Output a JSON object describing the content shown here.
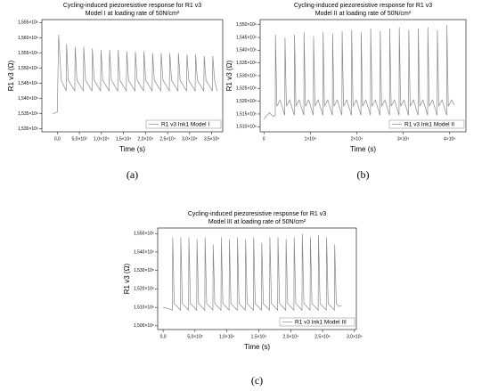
{
  "chart_data": [
    {
      "type": "line",
      "title": "Cycling-induced piezoresistive response for R1 v3",
      "subtitle": "Model I at loading rate of 50N/cm²",
      "caption": "(a)",
      "x_label": "Time (s)",
      "y_label": "R1 v3 (Ω)",
      "legend": "lower right",
      "x": [
        -1000,
        0,
        300,
        900,
        2000,
        2100,
        2500,
        3950,
        4050,
        4450,
        5900,
        6000,
        6400,
        7850,
        7950,
        8350,
        9800,
        9900,
        10300,
        11750,
        11850,
        12250,
        13700,
        13800,
        14200,
        15650,
        15750,
        16150,
        17600,
        17700,
        18100,
        19550,
        19650,
        20050,
        21500,
        21600,
        22000,
        23450,
        23550,
        23950,
        25400,
        25500,
        25900,
        27350,
        27450,
        27850,
        29300,
        29400,
        29800,
        31250,
        31350,
        31750,
        33200,
        33300,
        33700,
        35150,
        35250,
        35650,
        36200
      ],
      "series": [
        {
          "name": "R1 v3 Ink1 Model I",
          "color": "#888888",
          "values": [
            1535000,
            1535500,
            1561000,
            1546000,
            1542500,
            1558000,
            1546000,
            1542500,
            1557000,
            1546000,
            1542500,
            1557000,
            1546000,
            1542500,
            1556500,
            1546000,
            1542500,
            1556000,
            1546000,
            1542500,
            1556000,
            1546000,
            1542500,
            1556000,
            1546000,
            1542500,
            1555500,
            1546000,
            1542500,
            1555500,
            1546000,
            1542500,
            1555500,
            1546000,
            1542500,
            1555000,
            1546000,
            1542500,
            1555000,
            1546000,
            1542500,
            1555000,
            1546000,
            1542500,
            1555000,
            1546000,
            1542500,
            1554500,
            1546000,
            1542500,
            1554500,
            1546000,
            1542500,
            1554000,
            1546000,
            1542500,
            1554000,
            1546000,
            1542500
          ]
        }
      ],
      "xlim": [
        -3500,
        37500
      ],
      "ylim": [
        1529000,
        1566000
      ],
      "xticks": [
        {
          "value": 0,
          "label": "0,0"
        },
        {
          "value": 5000,
          "label": "5,0×10³"
        },
        {
          "value": 10000,
          "label": "1,0×10⁴"
        },
        {
          "value": 15000,
          "label": "1,5×10⁴"
        },
        {
          "value": 20000,
          "label": "2,0×10⁴"
        },
        {
          "value": 25000,
          "label": "2,5×10⁴"
        },
        {
          "value": 30000,
          "label": "3,0×10⁴"
        },
        {
          "value": 35000,
          "label": "3,5×10⁴"
        }
      ],
      "yticks": [
        {
          "value": 1530000,
          "label": "1,530×10⁶"
        },
        {
          "value": 1535000,
          "label": "1,535×10⁶"
        },
        {
          "value": 1540000,
          "label": "1,540×10⁶"
        },
        {
          "value": 1545000,
          "label": "1,545×10⁶"
        },
        {
          "value": 1550000,
          "label": "1,550×10⁶"
        },
        {
          "value": 1555000,
          "label": "1,555×10⁶"
        },
        {
          "value": 1560000,
          "label": "1,560×10⁶"
        },
        {
          "value": 1565000,
          "label": "1,565×10⁶"
        }
      ]
    },
    {
      "type": "line",
      "title": "Cycling-induced piezoresistive response for R1 v3",
      "subtitle": "Model II at loading rate of 50N/cm²",
      "caption": "(b)",
      "x_label": "Time (s)",
      "y_label": "R1 v3 (Ω)",
      "legend": "lower right",
      "x": [
        0,
        1200,
        2000,
        2450,
        2500,
        2800,
        3500,
        4500,
        4550,
        4850,
        5550,
        6550,
        6600,
        6900,
        7600,
        8600,
        8650,
        8950,
        9650,
        10650,
        10700,
        11000,
        11700,
        12700,
        12750,
        13050,
        13750,
        14750,
        14800,
        15100,
        15800,
        16800,
        16850,
        17150,
        17850,
        18850,
        18900,
        19200,
        19900,
        20900,
        20950,
        21250,
        21950,
        22950,
        23000,
        23300,
        24000,
        25000,
        25050,
        25350,
        26050,
        27050,
        27100,
        27400,
        28100,
        29100,
        29150,
        29450,
        30150,
        31150,
        31200,
        31500,
        32200,
        33200,
        33250,
        33550,
        34250,
        35250,
        35300,
        35600,
        36300,
        37300,
        37350,
        37650,
        38350,
        39350,
        39400,
        39700,
        40400,
        41000
      ],
      "series": [
        {
          "name": "R1 v3 Ink1 Model II",
          "color": "#888888",
          "values": [
            1513000,
            1515500,
            1514000,
            1514500,
            1546000,
            1518000,
            1520500,
            1514500,
            1545000,
            1518000,
            1520500,
            1514500,
            1546000,
            1518000,
            1520500,
            1514500,
            1547000,
            1518000,
            1520500,
            1514500,
            1545500,
            1518000,
            1520500,
            1514500,
            1547000,
            1518000,
            1520500,
            1514500,
            1546500,
            1518000,
            1520500,
            1514500,
            1547500,
            1518000,
            1520500,
            1514500,
            1548000,
            1518000,
            1520500,
            1514500,
            1547000,
            1518000,
            1520500,
            1514500,
            1548500,
            1518000,
            1520500,
            1514500,
            1547500,
            1518000,
            1520500,
            1514500,
            1548500,
            1518000,
            1520500,
            1514500,
            1549000,
            1518000,
            1520500,
            1514500,
            1548000,
            1518000,
            1520500,
            1514500,
            1548500,
            1518000,
            1520500,
            1514500,
            1549000,
            1518000,
            1520500,
            1514500,
            1548000,
            1518000,
            1520500,
            1514500,
            1550000,
            1518000,
            1520500,
            1518500
          ]
        }
      ],
      "xlim": [
        -800,
        43500
      ],
      "ylim": [
        1508000,
        1552000
      ],
      "xticks": [
        0,
        {
          "value": 10000,
          "label": "1×10⁴"
        },
        {
          "value": 20000,
          "label": "2×10⁴"
        },
        {
          "value": 30000,
          "label": "3×10⁴"
        },
        {
          "value": 40000,
          "label": "4×10⁴"
        }
      ],
      "yticks": [
        {
          "value": 1510000,
          "label": "1,510×10⁶"
        },
        {
          "value": 1515000,
          "label": "1,515×10⁶"
        },
        {
          "value": 1520000,
          "label": "1,520×10⁶"
        },
        {
          "value": 1525000,
          "label": "1,525×10⁶"
        },
        {
          "value": 1530000,
          "label": "1,530×10⁶"
        },
        {
          "value": 1535000,
          "label": "1,535×10⁶"
        },
        {
          "value": 1540000,
          "label": "1,540×10⁶"
        },
        {
          "value": 1545000,
          "label": "1,545×10⁶"
        },
        {
          "value": 1550000,
          "label": "1,550×10⁶"
        }
      ]
    },
    {
      "type": "line",
      "title": "Cycling-induced piezoresistive response for R1 v3",
      "subtitle": "Model III at loading rate of 50N/cm²",
      "caption": "(c)",
      "x_label": "Time (s)",
      "y_label": "R1 v3 (Ω)",
      "legend": "lower right",
      "x": [
        0,
        700,
        1450,
        1500,
        1750,
        2200,
        2720,
        2770,
        3020,
        3470,
        3990,
        4040,
        4290,
        4740,
        5260,
        5310,
        5560,
        6010,
        6530,
        6580,
        6830,
        7280,
        7800,
        7850,
        8100,
        8550,
        9070,
        9120,
        9370,
        9820,
        10340,
        10390,
        10640,
        11090,
        11610,
        11660,
        11910,
        12360,
        12880,
        12930,
        13180,
        13630,
        14150,
        14200,
        14450,
        14900,
        15420,
        15470,
        15720,
        16170,
        16690,
        16740,
        16990,
        17440,
        17960,
        18010,
        18260,
        18710,
        19230,
        19280,
        19530,
        19980,
        20500,
        20550,
        20800,
        21250,
        21770,
        21820,
        22070,
        22520,
        23040,
        23090,
        23340,
        23790,
        24310,
        24360,
        24610,
        25060,
        25580,
        25630,
        25880,
        26330,
        26850,
        26900,
        27150,
        27600,
        28000
      ],
      "series": [
        {
          "name": "R1 v3 Ink1 Model III",
          "color": "#888888",
          "values": [
            1510000,
            1509500,
            1508500,
            1548000,
            1512000,
            1510500,
            1508500,
            1548000,
            1512000,
            1510500,
            1508500,
            1548000,
            1512000,
            1510500,
            1508500,
            1547000,
            1512000,
            1510500,
            1508500,
            1548000,
            1512000,
            1510500,
            1508500,
            1544000,
            1512000,
            1510500,
            1508500,
            1548000,
            1512000,
            1510500,
            1508500,
            1547000,
            1512000,
            1510500,
            1508500,
            1548000,
            1512000,
            1510500,
            1508500,
            1547000,
            1512000,
            1510500,
            1508500,
            1548000,
            1512000,
            1510500,
            1508500,
            1545000,
            1512000,
            1510500,
            1508500,
            1548000,
            1512000,
            1510500,
            1508500,
            1548000,
            1512000,
            1510500,
            1508500,
            1547000,
            1512000,
            1510500,
            1508500,
            1548000,
            1512000,
            1510500,
            1508500,
            1550000,
            1512000,
            1510500,
            1508500,
            1548000,
            1512000,
            1510500,
            1508500,
            1549000,
            1512000,
            1510500,
            1508500,
            1548000,
            1512000,
            1510500,
            1508500,
            1544000,
            1512000,
            1510500,
            1511000
          ]
        }
      ],
      "xlim": [
        -850,
        30300
      ],
      "ylim": [
        1498000,
        1553000
      ],
      "xticks": [
        {
          "value": 0,
          "label": "0,0"
        },
        {
          "value": 5000,
          "label": "5,0×10³"
        },
        {
          "value": 10000,
          "label": "1,0×10⁴"
        },
        {
          "value": 15000,
          "label": "1,5×10⁴"
        },
        {
          "value": 20000,
          "label": "2,0×10⁴"
        },
        {
          "value": 25000,
          "label": "2,5×10⁴"
        },
        {
          "value": 30000,
          "label": "3,0×10⁴"
        }
      ],
      "yticks": [
        {
          "value": 1500000,
          "label": "1,500×10⁶"
        },
        {
          "value": 1510000,
          "label": "1,510×10⁶"
        },
        {
          "value": 1520000,
          "label": "1,520×10⁶"
        },
        {
          "value": 1530000,
          "label": "1,530×10⁶"
        },
        {
          "value": 1540000,
          "label": "1,540×10⁶"
        },
        {
          "value": 1550000,
          "label": "1,550×10⁶"
        }
      ]
    }
  ]
}
